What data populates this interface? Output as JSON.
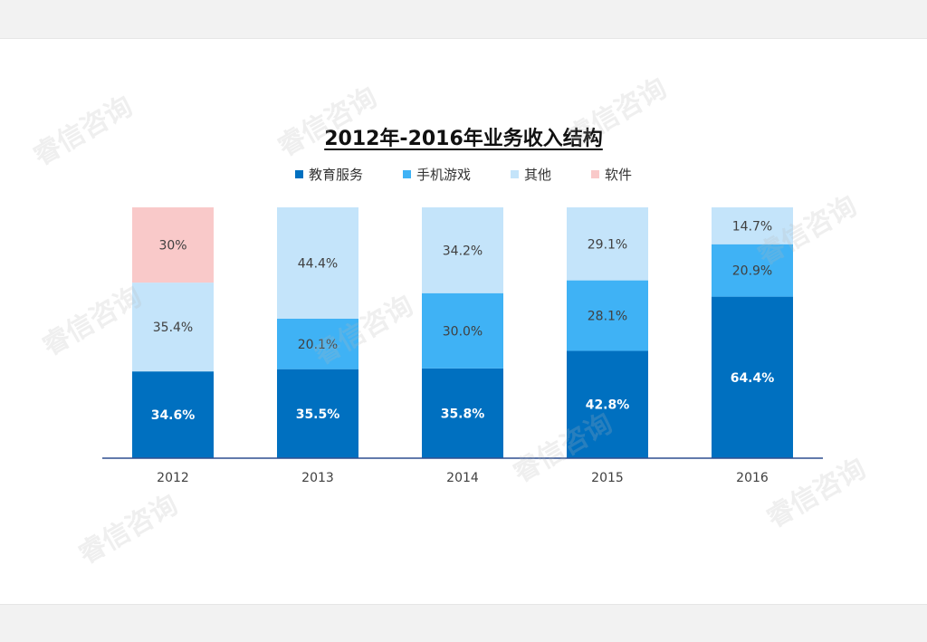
{
  "colors": {
    "education": "#0070c0",
    "mobile_games": "#3fb2f5",
    "other": "#c4e4fa",
    "software": "#f9c9c9",
    "axis": "#2f4f8f"
  },
  "watermark_text": "睿信咨询",
  "chart_data": {
    "type": "bar",
    "stacked": true,
    "title": "2012年-2016年业务收入结构",
    "categories": [
      "2012",
      "2013",
      "2014",
      "2015",
      "2016"
    ],
    "legend_position": "top",
    "grid": false,
    "ylim": [
      0,
      100
    ],
    "series": [
      {
        "name": "教育服务",
        "color": "#0070c0",
        "values": [
          34.6,
          35.5,
          35.8,
          42.8,
          64.4
        ],
        "labels": [
          "34.6%",
          "35.5%",
          "35.8%",
          "42.8%",
          "64.4%"
        ]
      },
      {
        "name": "手机游戏",
        "color": "#3fb2f5",
        "values": [
          0,
          20.1,
          30.0,
          28.1,
          20.9
        ],
        "labels": [
          "",
          "20.1%",
          "30.0%",
          "28.1%",
          "20.9%"
        ]
      },
      {
        "name": "其他",
        "color": "#c4e4fa",
        "values": [
          35.4,
          44.4,
          34.2,
          29.1,
          14.7
        ],
        "labels": [
          "35.4%",
          "44.4%",
          "34.2%",
          "29.1%",
          "14.7%"
        ]
      },
      {
        "name": "软件",
        "color": "#f9c9c9",
        "values": [
          30,
          0,
          0,
          0,
          0
        ],
        "labels": [
          "30%",
          "",
          "",
          "",
          ""
        ]
      }
    ]
  }
}
